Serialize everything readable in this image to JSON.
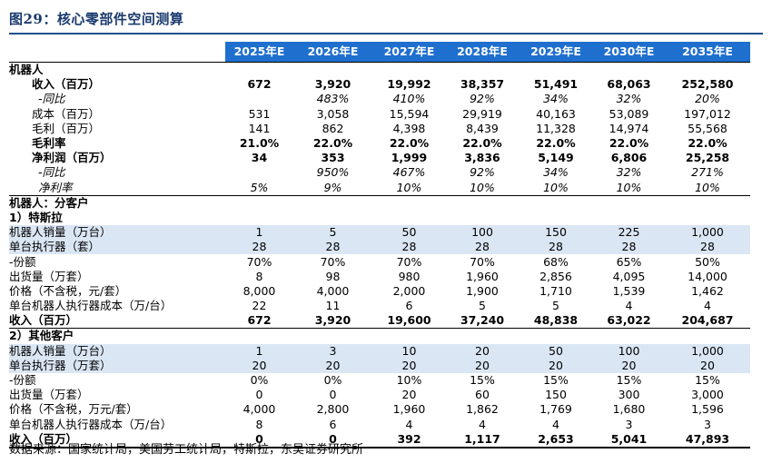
{
  "title": "图29：核心零部件空间测算",
  "columns": [
    "2025年E",
    "2026年E",
    "2027年E",
    "2028年E",
    "2029年E",
    "2030年E",
    "2035年E"
  ],
  "rows": [
    {
      "type": "section",
      "label": "机器人",
      "cells": [
        "",
        "",
        "",
        "",
        "",
        "",
        ""
      ]
    },
    {
      "type": "data",
      "style": "bold",
      "indent": 1,
      "label": "收入（百万）",
      "cells": [
        "672",
        "3,920",
        "19,992",
        "38,357",
        "51,491",
        "68,063",
        "252,580"
      ]
    },
    {
      "type": "data",
      "style": "italic",
      "indent": 2,
      "label": "-同比",
      "cells": [
        "",
        "483%",
        "410%",
        "92%",
        "34%",
        "32%",
        "20%"
      ]
    },
    {
      "type": "data",
      "style": "",
      "indent": 1,
      "label": "成本（百万）",
      "cells": [
        "531",
        "3,058",
        "15,594",
        "29,919",
        "40,163",
        "53,089",
        "197,012"
      ]
    },
    {
      "type": "data",
      "style": "",
      "indent": 1,
      "label": "毛利（百万）",
      "cells": [
        "141",
        "862",
        "4,398",
        "8,439",
        "11,328",
        "14,974",
        "55,568"
      ]
    },
    {
      "type": "data",
      "style": "bold",
      "indent": 1,
      "label": "毛利率",
      "cells": [
        "21.0%",
        "22.0%",
        "22.0%",
        "22.0%",
        "22.0%",
        "22.0%",
        "22.0%"
      ]
    },
    {
      "type": "data",
      "style": "bold",
      "indent": 1,
      "label": "净利润（百万）",
      "cells": [
        "34",
        "353",
        "1,999",
        "3,836",
        "5,149",
        "6,806",
        "25,258"
      ]
    },
    {
      "type": "data",
      "style": "italic",
      "indent": 2,
      "label": "-同比",
      "cells": [
        "",
        "950%",
        "467%",
        "92%",
        "34%",
        "32%",
        "271%"
      ]
    },
    {
      "type": "data",
      "style": "italic",
      "indent": 2,
      "label": "净利率",
      "cells": [
        "5%",
        "9%",
        "10%",
        "10%",
        "10%",
        "10%",
        "10%"
      ]
    },
    {
      "type": "section",
      "label": "机器人：分客户",
      "cells": [
        "",
        "",
        "",
        "",
        "",
        "",
        ""
      ]
    },
    {
      "type": "subhead",
      "label": "1）特斯拉",
      "cells": [
        "",
        "",
        "",
        "",
        "",
        "",
        ""
      ]
    },
    {
      "type": "data",
      "style": "blue",
      "indent": 0,
      "label": "机器人销量（万台）",
      "cells": [
        "1",
        "5",
        "50",
        "100",
        "150",
        "225",
        "1,000"
      ]
    },
    {
      "type": "data",
      "style": "blue",
      "indent": 0,
      "label": "单台执行器（套）",
      "cells": [
        "28",
        "28",
        "28",
        "28",
        "28",
        "28",
        "28"
      ]
    },
    {
      "type": "data",
      "style": "",
      "indent": 0,
      "label": "-份额",
      "cells": [
        "70%",
        "70%",
        "70%",
        "70%",
        "68%",
        "65%",
        "50%"
      ]
    },
    {
      "type": "data",
      "style": "",
      "indent": 0,
      "label": "出货量（万套）",
      "cells": [
        "8",
        "98",
        "980",
        "1,960",
        "2,856",
        "4,095",
        "14,000"
      ]
    },
    {
      "type": "data",
      "style": "",
      "indent": 0,
      "label": "价格（不含税，元/套）",
      "cells": [
        "8,000",
        "4,000",
        "2,000",
        "1,900",
        "1,710",
        "1,539",
        "1,462"
      ]
    },
    {
      "type": "data",
      "style": "",
      "indent": 0,
      "label": "单台机器人执行器成本（万/台）",
      "cells": [
        "22",
        "11",
        "6",
        "5",
        "5",
        "4",
        "4"
      ]
    },
    {
      "type": "data",
      "style": "bold",
      "indent": 0,
      "label": "收入（百万）",
      "cells": [
        "672",
        "3,920",
        "19,600",
        "37,240",
        "48,838",
        "63,022",
        "204,687"
      ]
    },
    {
      "type": "section",
      "label": "2）其他客户",
      "cells": [
        "",
        "",
        "",
        "",
        "",
        "",
        ""
      ]
    },
    {
      "type": "data",
      "style": "blue",
      "indent": 0,
      "label": "机器人销量（万台）",
      "cells": [
        "1",
        "3",
        "10",
        "20",
        "50",
        "100",
        "1,000"
      ]
    },
    {
      "type": "data",
      "style": "blue",
      "indent": 0,
      "label": "单台执行器（万套）",
      "cells": [
        "20",
        "20",
        "20",
        "20",
        "20",
        "20",
        "20"
      ]
    },
    {
      "type": "data",
      "style": "",
      "indent": 0,
      "label": "-份额",
      "cells": [
        "0%",
        "0%",
        "10%",
        "15%",
        "15%",
        "15%",
        "15%"
      ]
    },
    {
      "type": "data",
      "style": "",
      "indent": 0,
      "label": "出货量（万套）",
      "cells": [
        "0",
        "0",
        "20",
        "60",
        "150",
        "300",
        "3,000"
      ]
    },
    {
      "type": "data",
      "style": "",
      "indent": 0,
      "label": "价格（不含税，万元/套）",
      "cells": [
        "4,000",
        "2,800",
        "1,960",
        "1,862",
        "1,769",
        "1,680",
        "1,596"
      ]
    },
    {
      "type": "data",
      "style": "",
      "indent": 0,
      "label": "单台机器人执行器成本（万/台）",
      "cells": [
        "8",
        "6",
        "4",
        "4",
        "4",
        "3",
        "3"
      ]
    },
    {
      "type": "data",
      "style": "bold",
      "indent": 0,
      "label": "收入（百万）",
      "cells": [
        "0",
        "0",
        "392",
        "1,117",
        "2,653",
        "5,041",
        "47,893"
      ]
    }
  ],
  "source": "数据来源：国家统计局，美国劳工统计局，特斯拉，东吴证券研究所"
}
